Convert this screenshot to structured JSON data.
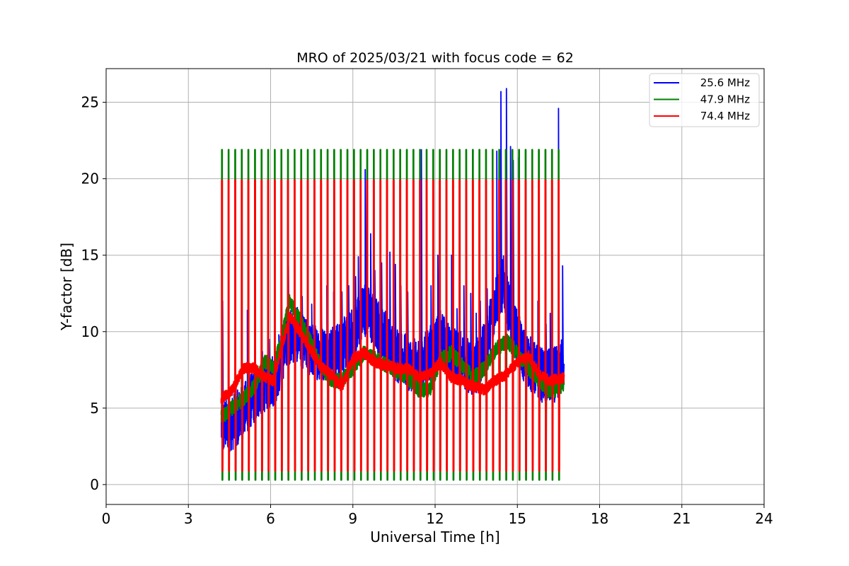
{
  "chart_data": {
    "type": "line",
    "title": "MRO of 2025/03/21 with focus code = 62",
    "xlabel": "Universal Time [h]",
    "ylabel": "Y-factor [dB]",
    "xlim": [
      0,
      24
    ],
    "ylim": [
      -1.3,
      27.2
    ],
    "xticks": [
      0,
      3,
      6,
      9,
      12,
      15,
      18,
      21,
      24
    ],
    "yticks": [
      0,
      5,
      10,
      15,
      20,
      25
    ],
    "grid": true,
    "legend_position": "top-right",
    "series": [
      {
        "name": "25.6 MHz",
        "color": "#0000ff",
        "baseline": [
          [
            4.2,
            3.8
          ],
          [
            4.6,
            4.0
          ],
          [
            5.0,
            4.8
          ],
          [
            5.4,
            5.8
          ],
          [
            5.8,
            6.6
          ],
          [
            6.2,
            7.0
          ],
          [
            6.6,
            9.6
          ],
          [
            7.0,
            9.8
          ],
          [
            7.4,
            8.8
          ],
          [
            7.8,
            8.6
          ],
          [
            8.2,
            8.6
          ],
          [
            8.6,
            9.0
          ],
          [
            9.0,
            9.8
          ],
          [
            9.4,
            11.6
          ],
          [
            9.8,
            10.6
          ],
          [
            10.2,
            9.6
          ],
          [
            10.6,
            8.4
          ],
          [
            11.0,
            8.0
          ],
          [
            11.4,
            7.6
          ],
          [
            11.8,
            8.6
          ],
          [
            12.2,
            9.6
          ],
          [
            12.6,
            8.6
          ],
          [
            13.0,
            8.2
          ],
          [
            13.4,
            7.4
          ],
          [
            13.8,
            8.8
          ],
          [
            14.2,
            12.0
          ],
          [
            14.5,
            13.2
          ],
          [
            14.8,
            10.6
          ],
          [
            15.2,
            8.6
          ],
          [
            15.6,
            7.6
          ],
          [
            16.0,
            7.0
          ],
          [
            16.4,
            7.2
          ],
          [
            16.7,
            8.0
          ]
        ],
        "spikes": [
          [
            4.25,
            12.0
          ],
          [
            4.8,
            5.2
          ],
          [
            5.15,
            11.4
          ],
          [
            5.45,
            6.6
          ],
          [
            5.7,
            8.7
          ],
          [
            5.95,
            9.5
          ],
          [
            6.3,
            9.8
          ],
          [
            6.4,
            12.7
          ],
          [
            6.65,
            14.3
          ],
          [
            6.95,
            11.0
          ],
          [
            7.15,
            12.3
          ],
          [
            7.5,
            11.8
          ],
          [
            7.85,
            13.7
          ],
          [
            8.05,
            13.0
          ],
          [
            8.3,
            12.6
          ],
          [
            8.6,
            12.6
          ],
          [
            8.85,
            13.0
          ],
          [
            9.1,
            13.6
          ],
          [
            9.2,
            14.9
          ],
          [
            9.45,
            20.6
          ],
          [
            9.65,
            16.4
          ],
          [
            9.8,
            14.0
          ],
          [
            10.05,
            14.5
          ],
          [
            10.35,
            15.2
          ],
          [
            10.55,
            14.4
          ],
          [
            10.75,
            13.0
          ],
          [
            11.0,
            12.6
          ],
          [
            11.2,
            14.3
          ],
          [
            11.5,
            21.9
          ],
          [
            11.85,
            13.0
          ],
          [
            12.1,
            15.0
          ],
          [
            12.4,
            16.0
          ],
          [
            12.6,
            15.0
          ],
          [
            12.8,
            11.5
          ],
          [
            13.05,
            13.0
          ],
          [
            13.3,
            12.5
          ],
          [
            13.5,
            11.2
          ],
          [
            13.65,
            12.0
          ],
          [
            13.9,
            12.8
          ],
          [
            14.1,
            18.8
          ],
          [
            14.25,
            21.8
          ],
          [
            14.4,
            25.7
          ],
          [
            14.6,
            25.9
          ],
          [
            14.75,
            22.1
          ],
          [
            14.85,
            21.2
          ],
          [
            15.05,
            21.4
          ],
          [
            15.3,
            11.7
          ],
          [
            15.55,
            10.6
          ],
          [
            15.75,
            12.0
          ],
          [
            16.05,
            10.5
          ],
          [
            16.2,
            11.2
          ],
          [
            16.35,
            9.0
          ],
          [
            16.5,
            24.6
          ],
          [
            16.65,
            14.3
          ],
          [
            16.75,
            15.4
          ]
        ]
      },
      {
        "name": "47.9 MHz",
        "color": "#008000",
        "baseline": [
          [
            4.2,
            4.4
          ],
          [
            4.6,
            5.0
          ],
          [
            5.0,
            5.6
          ],
          [
            5.4,
            6.4
          ],
          [
            5.8,
            8.0
          ],
          [
            6.1,
            7.6
          ],
          [
            6.4,
            9.6
          ],
          [
            6.7,
            12.0
          ],
          [
            7.0,
            11.0
          ],
          [
            7.4,
            9.6
          ],
          [
            7.8,
            7.8
          ],
          [
            8.2,
            6.8
          ],
          [
            8.6,
            6.8
          ],
          [
            9.0,
            7.6
          ],
          [
            9.4,
            8.6
          ],
          [
            9.8,
            8.2
          ],
          [
            10.2,
            7.8
          ],
          [
            10.6,
            7.4
          ],
          [
            11.0,
            7.0
          ],
          [
            11.4,
            6.2
          ],
          [
            11.8,
            6.2
          ],
          [
            12.2,
            8.2
          ],
          [
            12.6,
            8.6
          ],
          [
            13.0,
            7.8
          ],
          [
            13.4,
            7.0
          ],
          [
            13.8,
            7.6
          ],
          [
            14.2,
            8.8
          ],
          [
            14.6,
            9.4
          ],
          [
            15.0,
            8.6
          ],
          [
            15.4,
            7.6
          ],
          [
            15.8,
            6.8
          ],
          [
            16.2,
            6.0
          ],
          [
            16.7,
            6.6
          ]
        ]
      },
      {
        "name": "74.4 MHz",
        "color": "#ff0000",
        "baseline": [
          [
            4.2,
            5.6
          ],
          [
            4.6,
            6.2
          ],
          [
            5.0,
            7.6
          ],
          [
            5.4,
            7.6
          ],
          [
            5.8,
            7.0
          ],
          [
            6.1,
            6.8
          ],
          [
            6.4,
            9.0
          ],
          [
            6.7,
            11.0
          ],
          [
            7.0,
            10.2
          ],
          [
            7.4,
            9.0
          ],
          [
            7.8,
            7.8
          ],
          [
            8.2,
            7.2
          ],
          [
            8.6,
            6.4
          ],
          [
            9.0,
            8.2
          ],
          [
            9.4,
            8.6
          ],
          [
            9.8,
            8.0
          ],
          [
            10.2,
            7.8
          ],
          [
            10.6,
            7.6
          ],
          [
            11.0,
            7.6
          ],
          [
            11.4,
            7.0
          ],
          [
            11.8,
            7.2
          ],
          [
            12.2,
            8.0
          ],
          [
            12.6,
            7.0
          ],
          [
            13.0,
            6.8
          ],
          [
            13.4,
            6.4
          ],
          [
            13.8,
            6.2
          ],
          [
            14.2,
            6.8
          ],
          [
            14.6,
            7.2
          ],
          [
            15.0,
            8.0
          ],
          [
            15.4,
            8.4
          ],
          [
            15.8,
            7.2
          ],
          [
            16.2,
            6.8
          ],
          [
            16.7,
            7.0
          ]
        ]
      }
    ],
    "calibration_pulses": {
      "first_hour": 4.22,
      "last_hour": 16.5,
      "count": 52,
      "green_high": 21.9,
      "green_low": 0.3,
      "red_high": 19.9,
      "red_low": 0.9
    }
  }
}
